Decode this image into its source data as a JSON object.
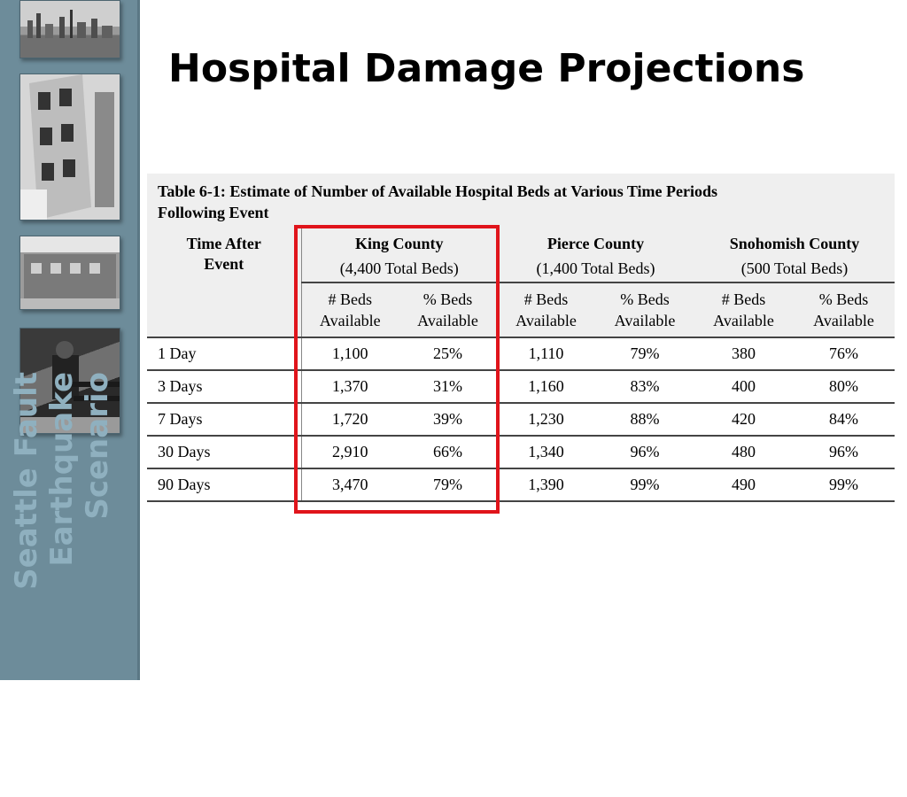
{
  "sidebar": {
    "title_lines": [
      "Seattle Fault",
      "Earthquake",
      "Scenario"
    ],
    "photos": [
      "city-skyline-photo",
      "damaged-building-photo",
      "storefront-photo",
      "bench-photo"
    ]
  },
  "title": "Hospital Damage Projections",
  "table": {
    "caption_line1": "Table 6-1: Estimate of Number of Available Hospital Beds at Various Time Periods",
    "caption_line2": "Following Event",
    "time_header_line1": "Time After",
    "time_header_line2": "Event",
    "counties": [
      {
        "name": "King County",
        "total": "(4,400 Total Beds)"
      },
      {
        "name": "Pierce County",
        "total": "(1,400 Total Beds)"
      },
      {
        "name": "Snohomish County",
        "total": "(500 Total Beds)"
      }
    ],
    "col_beds": [
      "# Beds",
      "Available"
    ],
    "col_pct": [
      "% Beds",
      "Available"
    ],
    "rows": [
      {
        "time": "1 Day",
        "values": [
          "1,100",
          "25%",
          "1,110",
          "79%",
          "380",
          "76%"
        ]
      },
      {
        "time": "3 Days",
        "values": [
          "1,370",
          "31%",
          "1,160",
          "83%",
          "400",
          "80%"
        ]
      },
      {
        "time": "7 Days",
        "values": [
          "1,720",
          "39%",
          "1,230",
          "88%",
          "420",
          "84%"
        ]
      },
      {
        "time": "30 Days",
        "values": [
          "2,910",
          "66%",
          "1,340",
          "96%",
          "480",
          "96%"
        ]
      },
      {
        "time": "90 Days",
        "values": [
          "3,470",
          "79%",
          "1,390",
          "99%",
          "490",
          "99%"
        ]
      }
    ]
  },
  "highlight_color": "#e0141b"
}
